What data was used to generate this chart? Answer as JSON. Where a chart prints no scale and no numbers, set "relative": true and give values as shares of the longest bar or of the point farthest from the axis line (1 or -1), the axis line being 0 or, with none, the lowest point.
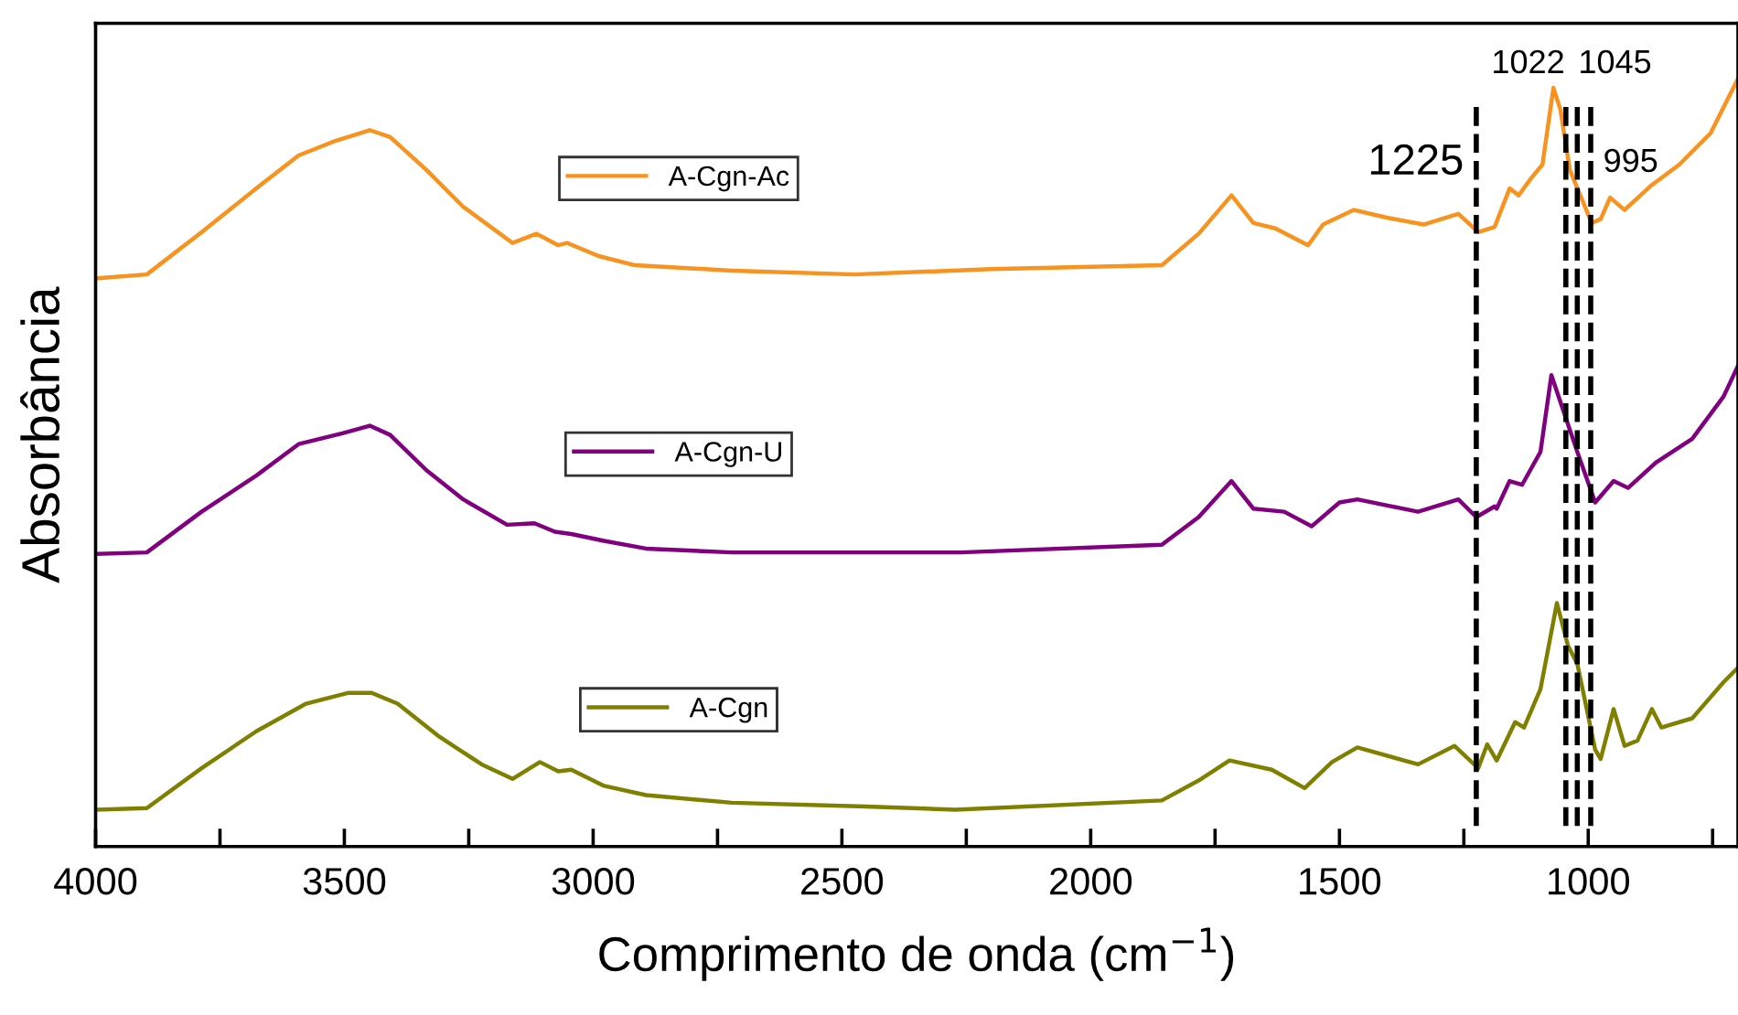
{
  "chart_data": {
    "type": "line",
    "relative": true,
    "xlabel": "Comprimento de onda (cm$^{−1}$)",
    "ylabel": "Absorbância",
    "xlim": [
      4000,
      699
    ],
    "xticks": [
      4000,
      {
        "value": 3750,
        "label": null
      },
      3500,
      {
        "value": 3250,
        "label": null
      },
      3000,
      {
        "value": 2750,
        "label": null
      },
      2500,
      {
        "value": 2250,
        "label": null
      },
      2000,
      {
        "value": 1750,
        "label": null
      },
      1500,
      {
        "value": 1250,
        "label": null
      },
      1000,
      {
        "value": 750,
        "label": null
      }
    ],
    "legend": "left",
    "grid": false,
    "marker": "none",
    "line_style": "solid",
    "series": [
      {
        "name": "A-Cgn-Ac",
        "color": "#f7931e",
        "x": [
          3996,
          3897,
          3787,
          3677,
          3592,
          3518,
          3449,
          3408,
          3335,
          3261,
          3162,
          3114,
          3070,
          3052,
          2989,
          2916,
          2721,
          2475,
          2199,
          1857,
          1783,
          1717,
          1673,
          1629,
          1563,
          1533,
          1471,
          1405,
          1331,
          1261,
          1221,
          1188,
          1158,
          1140,
          1114,
          1092,
          1070,
          1056,
          1037,
          993,
          975,
          956,
          927,
          875,
          817,
          754,
          699
        ],
        "values": [
          0.74,
          0.745,
          0.8,
          0.857,
          0.9,
          0.919,
          0.933,
          0.924,
          0.881,
          0.833,
          0.786,
          0.798,
          0.783,
          0.786,
          0.769,
          0.757,
          0.75,
          0.745,
          0.752,
          0.757,
          0.798,
          0.848,
          0.812,
          0.805,
          0.783,
          0.81,
          0.829,
          0.819,
          0.81,
          0.824,
          0.8,
          0.807,
          0.857,
          0.848,
          0.871,
          0.888,
          0.988,
          0.96,
          0.881,
          0.812,
          0.817,
          0.845,
          0.829,
          0.86,
          0.888,
          0.929,
          1.0
        ]
      },
      {
        "name": "A-Cgn-U",
        "color": "#800080",
        "x": [
          3996,
          3897,
          3787,
          3677,
          3592,
          3504,
          3449,
          3408,
          3335,
          3261,
          3173,
          3118,
          3077,
          3044,
          2978,
          2894,
          2721,
          2452,
          2261,
          1857,
          1783,
          1717,
          1673,
          1611,
          1556,
          1500,
          1464,
          1342,
          1261,
          1225,
          1188,
          1184,
          1158,
          1133,
          1096,
          1074,
          1056,
          1022,
          986,
          949,
          920,
          864,
          791,
          728,
          699
        ],
        "values": [
          0.381,
          0.383,
          0.436,
          0.483,
          0.524,
          0.538,
          0.548,
          0.536,
          0.49,
          0.452,
          0.419,
          0.421,
          0.41,
          0.407,
          0.398,
          0.388,
          0.383,
          0.383,
          0.383,
          0.393,
          0.429,
          0.476,
          0.44,
          0.436,
          0.417,
          0.448,
          0.452,
          0.436,
          0.452,
          0.429,
          0.443,
          0.44,
          0.476,
          0.471,
          0.514,
          0.614,
          0.579,
          0.514,
          0.448,
          0.476,
          0.467,
          0.5,
          0.531,
          0.586,
          0.626
        ]
      },
      {
        "name": "A-Cgn",
        "color": "#808000",
        "x": [
          3996,
          3897,
          3787,
          3677,
          3577,
          3493,
          3445,
          3393,
          3309,
          3224,
          3162,
          3107,
          3070,
          3044,
          2978,
          2894,
          2721,
          2452,
          2272,
          1857,
          1783,
          1721,
          1636,
          1570,
          1515,
          1464,
          1342,
          1269,
          1221,
          1203,
          1184,
          1147,
          1129,
          1096,
          1063,
          1041,
          1022,
          986,
          975,
          949,
          927,
          901,
          872,
          853,
          791,
          728,
          699
        ],
        "values": [
          0.048,
          0.05,
          0.102,
          0.15,
          0.186,
          0.2,
          0.2,
          0.186,
          0.143,
          0.107,
          0.088,
          0.11,
          0.098,
          0.1,
          0.079,
          0.067,
          0.057,
          0.052,
          0.048,
          0.06,
          0.086,
          0.112,
          0.1,
          0.076,
          0.11,
          0.129,
          0.107,
          0.131,
          0.102,
          0.133,
          0.112,
          0.162,
          0.155,
          0.205,
          0.317,
          0.262,
          0.238,
          0.126,
          0.114,
          0.179,
          0.131,
          0.138,
          0.179,
          0.155,
          0.167,
          0.214,
          0.233
        ]
      }
    ],
    "ref_lines": [
      {
        "axis": "x",
        "value": 1225,
        "label": "1225",
        "line_style": "dashed",
        "color": "#000000"
      },
      {
        "axis": "x",
        "value": 1022,
        "label": "1022",
        "line_style": "dashed",
        "color": "#000000"
      },
      {
        "axis": "x",
        "value": 1045,
        "label": "1045",
        "line_style": "dashed",
        "color": "#000000"
      },
      {
        "axis": "x",
        "value": 995,
        "label": "995",
        "line_style": "dashed",
        "color": "#000000"
      }
    ]
  }
}
